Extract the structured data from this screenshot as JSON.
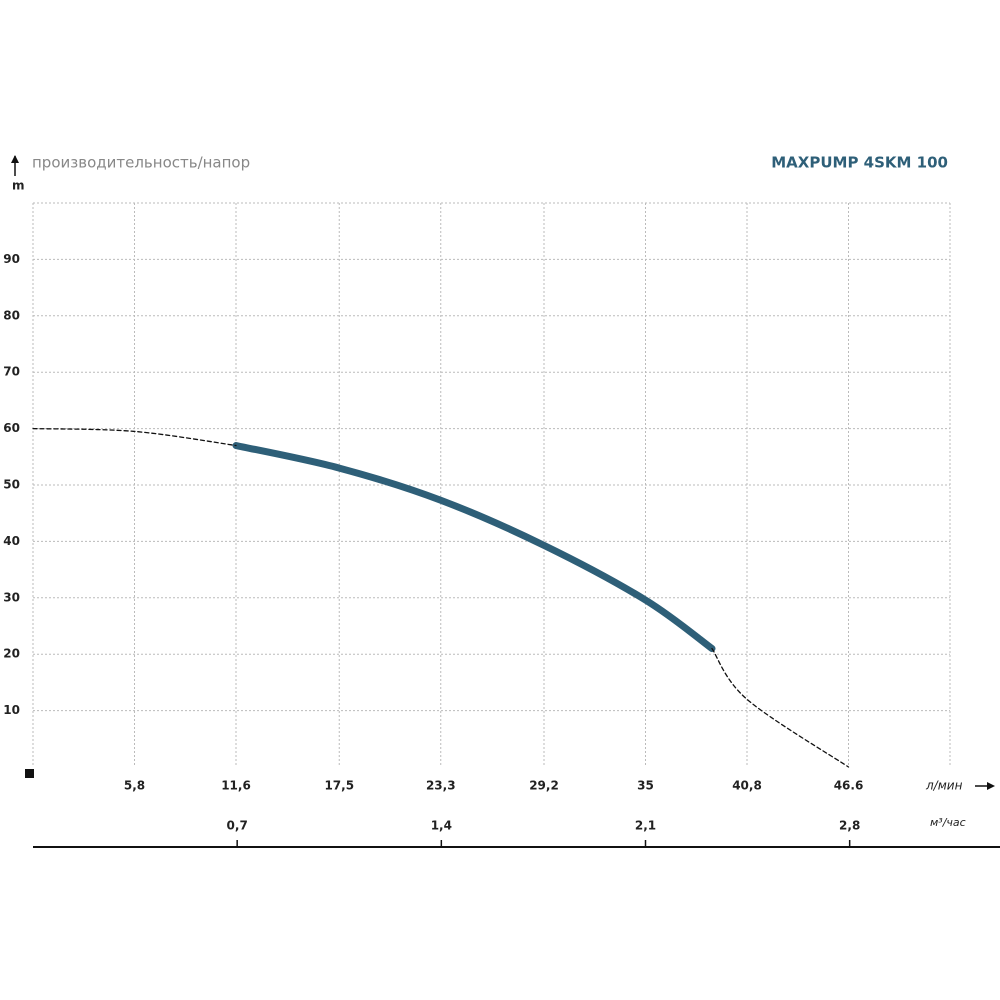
{
  "chart_data": {
    "type": "line",
    "title": "MAXPUMP 4SKM 100",
    "subtitle": "производительность/напор",
    "y_label": "m",
    "x_label": "л/мин",
    "x2_label": "м³/час",
    "x": [
      0,
      5.8,
      11.6,
      17.5,
      23.3,
      29.2,
      35,
      38.8,
      40.8,
      46.6
    ],
    "series": [
      {
        "color": "#2e5f78",
        "style": "solid",
        "values": [
          null,
          null,
          57,
          53,
          47.3,
          39.3,
          29.6,
          21,
          null,
          null
        ]
      },
      {
        "color": "#111111",
        "style": "dashed",
        "values": [
          60,
          59.5,
          57,
          null,
          null,
          null,
          null,
          21,
          12,
          0
        ]
      }
    ],
    "xlim": [
      0,
      52.4
    ],
    "xticks": [
      {
        "value": 5.8,
        "label": "5,8"
      },
      {
        "value": 11.6,
        "label": "11,6"
      },
      {
        "value": 17.5,
        "label": "17,5"
      },
      {
        "value": 23.3,
        "label": "23,3"
      },
      {
        "value": 29.2,
        "label": "29,2"
      },
      35,
      {
        "value": 40.8,
        "label": "40,8"
      },
      46.6
    ],
    "x2lim": [
      0,
      3.144
    ],
    "x2ticks": [
      {
        "value": 0.7,
        "label": "0,7"
      },
      {
        "value": 1.4,
        "label": "1,4"
      },
      {
        "value": 2.1,
        "label": "2,1"
      },
      {
        "value": 2.8,
        "label": "2,8"
      }
    ],
    "ylim": [
      0,
      100
    ],
    "yticks": [
      10,
      20,
      30,
      40,
      50,
      60,
      70,
      80,
      90
    ],
    "grid": true
  }
}
